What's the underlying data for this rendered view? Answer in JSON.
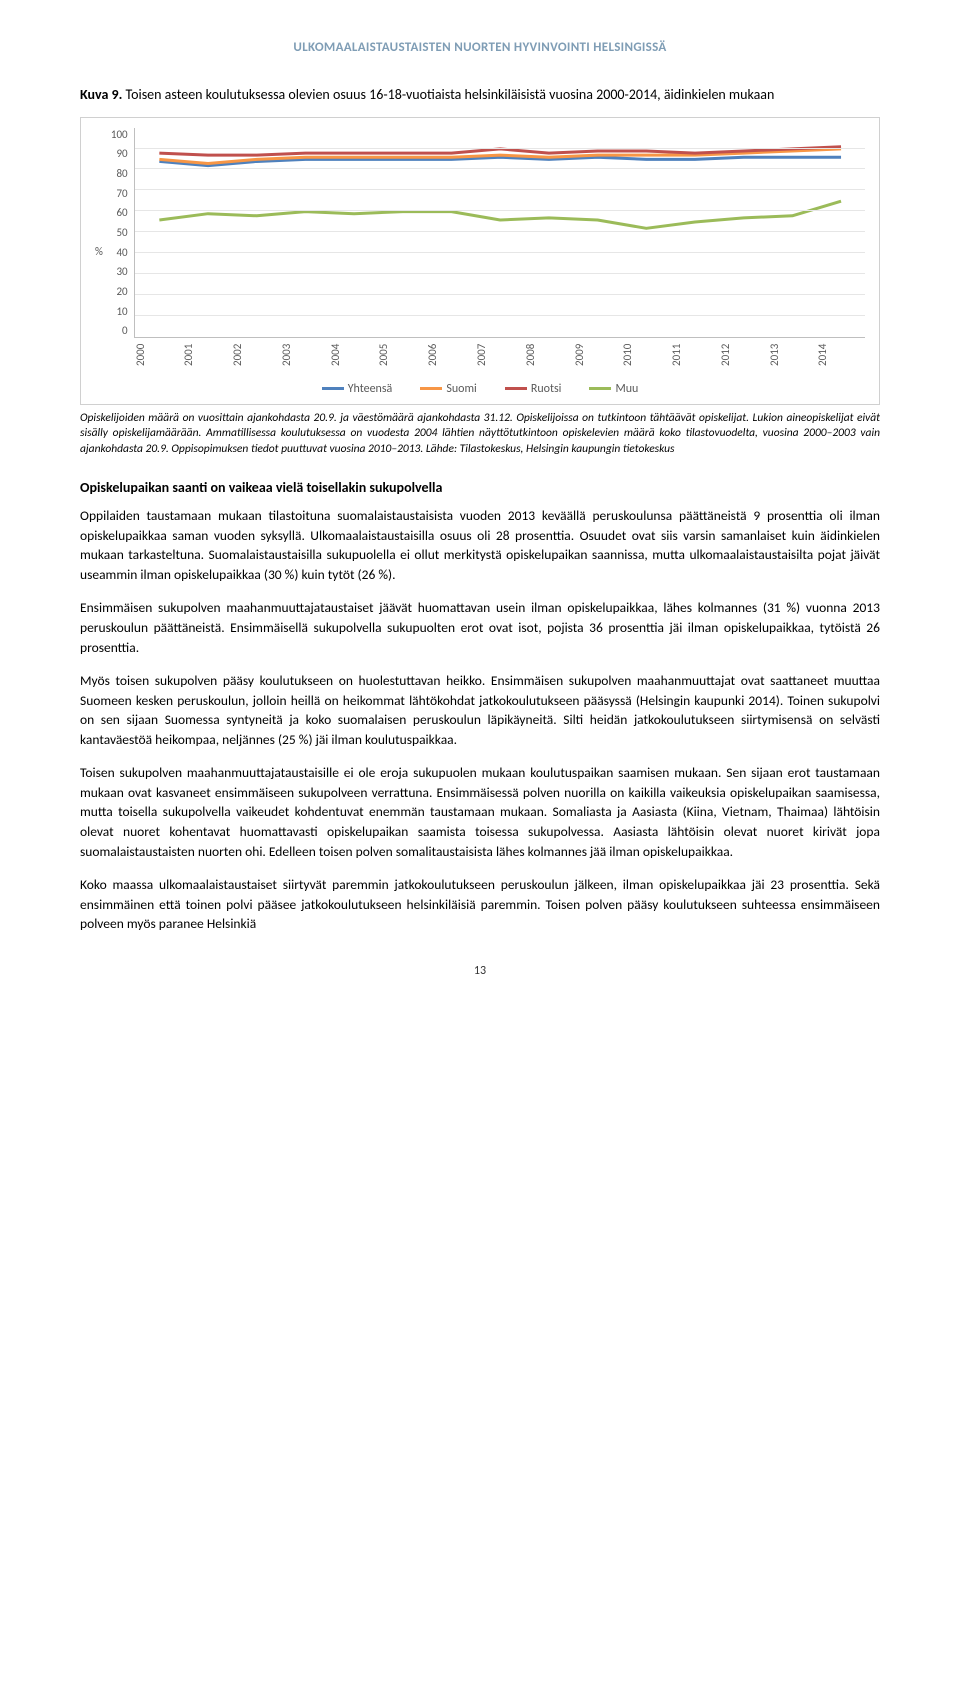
{
  "header": "ULKOMAALAISTAUSTAISTEN NUORTEN HYVINVOINTI HELSINGISSÄ",
  "figure": {
    "title_label": "Kuva 9.",
    "title_text": "Toisen asteen koulutuksessa olevien osuus 16-18-vuotiaista helsinkiläisistä vuosina 2000-2014, äidinkielen mukaan",
    "chart": {
      "type": "line",
      "y_unit": "%",
      "ylim": [
        0,
        100
      ],
      "ytick_step": 10,
      "yticks": [
        "100",
        "90",
        "80",
        "70",
        "60",
        "50",
        "40",
        "30",
        "20",
        "10",
        "0"
      ],
      "grid_color": "#e6e6e6",
      "axis_color": "#bfbfbf",
      "background_color": "#ffffff",
      "label_fontsize": 11,
      "label_color": "#595959",
      "line_width": 3,
      "categories": [
        "2000",
        "2001",
        "2002",
        "2003",
        "2004",
        "2005",
        "2006",
        "2007",
        "2008",
        "2009",
        "2010",
        "2011",
        "2012",
        "2013",
        "2014"
      ],
      "series": [
        {
          "name": "Yhteensä",
          "color": "#4f81bd",
          "values": [
            84,
            82,
            84,
            85,
            85,
            85,
            85,
            86,
            85,
            86,
            85,
            85,
            86,
            86,
            86
          ]
        },
        {
          "name": "Suomi",
          "color": "#f79646",
          "values": [
            85,
            83,
            85,
            86,
            86,
            86,
            86,
            87,
            86,
            87,
            87,
            87,
            88,
            89,
            90
          ]
        },
        {
          "name": "Ruotsi",
          "color": "#c0504d",
          "values": [
            88,
            87,
            87,
            88,
            88,
            88,
            88,
            90,
            88,
            89,
            89,
            88,
            89,
            90,
            91
          ]
        },
        {
          "name": "Muu",
          "color": "#9bbb59",
          "values": [
            56,
            59,
            58,
            60,
            59,
            60,
            60,
            56,
            57,
            56,
            52,
            55,
            57,
            58,
            65
          ]
        }
      ],
      "legend_position": "bottom"
    },
    "note": "Opiskelijoiden määrä on vuosittain ajankohdasta 20.9. ja väestömäärä ajankohdasta 31.12. Opiskelijoissa on tutkintoon tähtäävät opiskelijat. Lukion aineopiskelijat eivät sisälly opiskelijamäärään. Ammatillisessa koulutuksessa on vuodesta 2004 lähtien näyttötutkintoon opiskelevien määrä koko tilastovuodelta, vuosina 2000–2003 vain ajankohdasta 20.9. Oppisopimuksen tiedot puuttuvat vuosina 2010–2013. Lähde: Tilastokeskus, Helsingin kaupungin tietokeskus"
  },
  "section_title": "Opiskelupaikan saanti on vaikeaa vielä toisellakin sukupolvella",
  "paragraphs": {
    "p1": "Oppilaiden taustamaan mukaan tilastoituna suomalaistaustaisista vuoden 2013 keväällä peruskoulunsa päättäneistä 9 prosenttia oli ilman opiskelupaikkaa saman vuoden syksyllä. Ulkomaalaistaustaisilla osuus oli 28 prosenttia. Osuudet ovat siis varsin samanlaiset kuin äidinkielen mukaan tarkasteltuna. Suomalaistaustaisilla sukupuolella ei ollut merkitystä opiskelupaikan saannissa, mutta ulkomaalaistaustaisilta pojat jäivät useammin ilman opiskelupaikkaa (30 %) kuin tytöt (26 %).",
    "p2": "Ensimmäisen sukupolven maahanmuuttajataustaiset jäävät huomattavan usein ilman opiskelupaikkaa, lähes kolmannes (31 %) vuonna 2013 peruskoulun päättäneistä. Ensimmäisellä sukupolvella sukupuolten erot ovat isot, pojista 36 prosenttia jäi ilman opiskelupaikkaa, tytöistä 26 prosenttia.",
    "p3": "Myös toisen sukupolven pääsy koulutukseen on huolestuttavan heikko. Ensimmäisen sukupolven maahanmuuttajat ovat saattaneet muuttaa Suomeen kesken peruskoulun, jolloin heillä on heikommat lähtökohdat jatkokoulutukseen pääsyssä (Helsingin kaupunki 2014). Toinen sukupolvi on sen sijaan Suomessa syntyneitä ja koko suomalaisen peruskoulun läpikäyneitä. Silti heidän jatkokoulutukseen siirtymisensä on selvästi kantaväestöä heikompaa, neljännes (25 %) jäi ilman koulutuspaikkaa.",
    "p4": "Toisen sukupolven maahanmuuttajataustaisille ei ole eroja sukupuolen mukaan koulutuspaikan saamisen mukaan. Sen sijaan erot taustamaan mukaan ovat kasvaneet ensimmäiseen sukupolveen verrattuna. Ensimmäisessä polven nuorilla on kaikilla vaikeuksia opiskelupaikan saamisessa, mutta toisella sukupolvella vaikeudet kohdentuvat enemmän taustamaan mukaan. Somaliasta ja Aasiasta (Kiina, Vietnam, Thaimaa) lähtöisin olevat nuoret kohentavat huomattavasti opiskelupaikan saamista toisessa sukupolvessa. Aasiasta lähtöisin olevat nuoret kirivät jopa suomalaistaustaisten nuorten ohi. Edelleen toisen polven somalitaustaisista lähes kolmannes jää ilman opiskelupaikkaa.",
    "p5": "Koko maassa ulkomaalaistaustaiset siirtyvät paremmin jatkokoulutukseen peruskoulun jälkeen, ilman opiskelupaikkaa jäi 23 prosenttia. Sekä ensimmäinen että toinen polvi pääsee jatkokoulutukseen helsinkiläisiä paremmin. Toisen polven pääsy koulutukseen suhteessa ensimmäiseen polveen myös paranee Helsinkiä"
  },
  "page_number": "13"
}
